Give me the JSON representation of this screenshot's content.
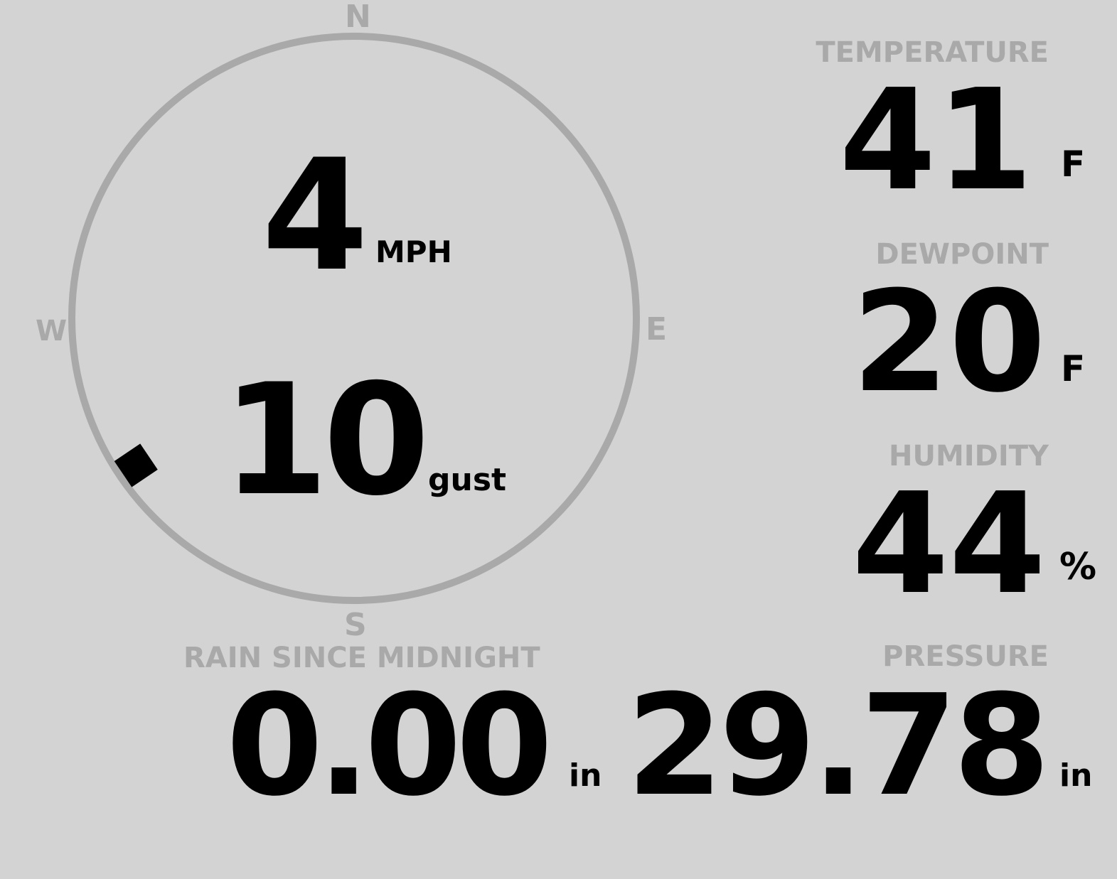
{
  "colors": {
    "background": "#d3d3d3",
    "label": "#a9a9a9",
    "value": "#000000"
  },
  "wind": {
    "compass": {
      "n": "N",
      "e": "E",
      "s": "S",
      "w": "W"
    },
    "speed": "4",
    "speed_unit": "MPH",
    "gust": "10",
    "gust_label": "gust",
    "direction_degrees": 236
  },
  "temperature": {
    "label": "TEMPERATURE",
    "value": "41",
    "unit": "F"
  },
  "dewpoint": {
    "label": "DEWPOINT",
    "value": "20",
    "unit": "F"
  },
  "humidity": {
    "label": "HUMIDITY",
    "value": "44",
    "unit": "%"
  },
  "rain": {
    "label": "RAIN SINCE MIDNIGHT",
    "value": "0.00",
    "unit": "in"
  },
  "pressure": {
    "label": "PRESSURE",
    "value": "29.78",
    "unit": "in"
  }
}
